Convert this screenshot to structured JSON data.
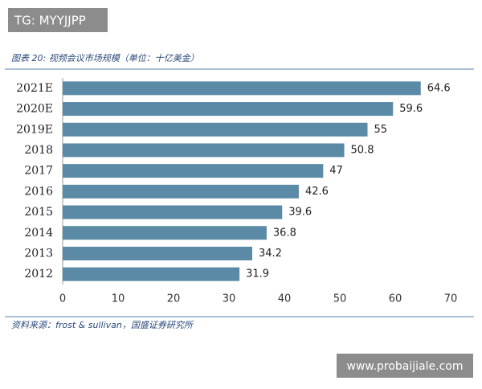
{
  "watermark_top": "TG: MYYJJPP",
  "watermark_bottom": "www.probaijiale.com",
  "chart_data": {
    "type": "bar",
    "orientation": "horizontal",
    "title": "图表 20: 视频会议市场规模（单位：十亿美金）",
    "source": "资料来源：frost & sullivan，国盛证券研究所",
    "categories": [
      "2021E",
      "2020E",
      "2019E",
      "2018",
      "2017",
      "2016",
      "2015",
      "2014",
      "2013",
      "2012"
    ],
    "values": [
      64.6,
      59.6,
      55,
      50.8,
      47,
      42.6,
      39.6,
      36.8,
      34.2,
      31.9
    ],
    "color": "#5b8aa6",
    "xlim": [
      0,
      70
    ],
    "xticks": [
      0,
      10,
      20,
      30,
      40,
      50,
      60,
      70
    ],
    "grid": false
  }
}
